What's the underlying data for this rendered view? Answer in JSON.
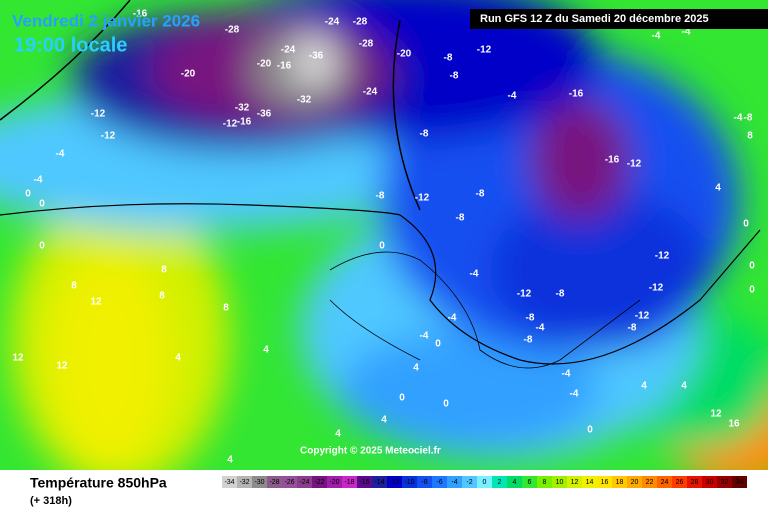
{
  "header": {
    "date": "Vendredi 2 janvier 2026",
    "time": "19:00 locale",
    "run": "Run GFS 12 Z du Samedi 20 décembre 2025"
  },
  "copyright": "Copyright © 2025 Meteociel.fr",
  "legend": {
    "title": "Température 850hPa",
    "subtitle": "(+ 318h)",
    "scale": [
      -34,
      -32,
      -30,
      -28,
      -26,
      -24,
      -22,
      -20,
      -18,
      -16,
      -14,
      -12,
      -10,
      -8,
      -6,
      -4,
      -2,
      0,
      2,
      4,
      6,
      8,
      10,
      12,
      14,
      16,
      18,
      20,
      22,
      24,
      26,
      28,
      30,
      32,
      34
    ],
    "colors": [
      "#d2d2d2",
      "#b4b4b4",
      "#8c8c8c",
      "#8c5a8c",
      "#96509b",
      "#8c3c8c",
      "#78147f",
      "#a01eaa",
      "#c828c8",
      "#5a0a8c",
      "#1e1e9e",
      "#0000c8",
      "#0a32dc",
      "#1450f0",
      "#1e78ff",
      "#32a0ff",
      "#50c8ff",
      "#78f0ff",
      "#00e6b4",
      "#00dc64",
      "#32e632",
      "#78f000",
      "#a0f000",
      "#d2f000",
      "#f0f000",
      "#ffe600",
      "#ffc800",
      "#ffaa00",
      "#ff8c00",
      "#ff6400",
      "#ff3c00",
      "#e61400",
      "#c80000",
      "#960000",
      "#640000"
    ]
  },
  "contour_labels": [
    -16,
    -28,
    -24,
    -28,
    -28,
    -20,
    -36,
    -24,
    -20,
    -16,
    -32,
    -36,
    -32,
    -24,
    -20,
    -12,
    -12,
    -12,
    -16,
    -4,
    -4,
    0,
    0,
    0,
    -12,
    -8,
    -8,
    -4,
    -16,
    -16,
    -12,
    -8,
    -12,
    -8,
    -8,
    -8,
    0,
    -4,
    -12,
    -8,
    -12,
    -12,
    -8,
    -12,
    -8,
    -4,
    -8,
    -4,
    -4,
    0,
    -4,
    -4,
    0,
    0,
    0,
    4,
    4,
    4,
    4,
    8,
    8,
    8,
    8,
    12,
    12,
    12,
    4,
    4,
    4,
    4,
    12,
    16,
    8,
    4,
    -4,
    -4,
    -4,
    0,
    0,
    0,
    -8
  ]
}
